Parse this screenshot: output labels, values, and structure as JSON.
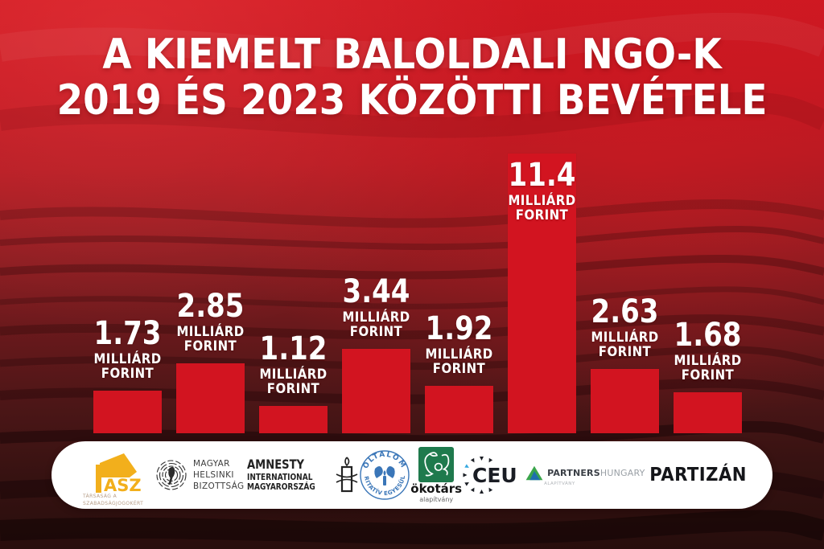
{
  "title": {
    "line1": "A KIEMELT BALOLDALI NGO-K",
    "line2": "2019 ÉS 2023 KÖZÖTTI BEVÉTELE"
  },
  "chart_data": {
    "type": "bar",
    "title": "A kiemelt baloldali NGO-k 2019 és 2023 közötti bevétele",
    "unit": "milliárd forint",
    "categories": [
      "TASZ",
      "Magyar Helsinki Bizottság",
      "Amnesty International Magyarország",
      "Oltalom Karitatív Egyesület",
      "Ökotárs Alapítvány",
      "CEU",
      "Partners Hungary Alapítvány",
      "Partizán"
    ],
    "values": [
      1.73,
      2.85,
      1.12,
      3.44,
      1.92,
      11.4,
      2.63,
      1.68
    ],
    "value_labels": [
      "1.73",
      "2.85",
      "1.12",
      "3.44",
      "1.92",
      "11.4",
      "2.63",
      "1.68"
    ],
    "unit_label_lines": [
      "MILLIÁRD",
      "FORINT"
    ],
    "ylim": [
      0,
      11.4
    ],
    "label_inside_index": 5,
    "bar_color": "#d21420",
    "label_color": "#ffffff",
    "legend": "none",
    "grid": "off"
  },
  "logos": [
    {
      "name": "TASZ",
      "wordmark": "ASZ",
      "caption_line1": "TÁRSASÁG A",
      "caption_line2": "SZABADSÁGJOGOKÉRT",
      "color": "#f2af1c"
    },
    {
      "name": "Magyar Helsinki Bizottság",
      "lines": [
        "MAGYAR",
        "HELSINKI",
        "BIZOTTSÁG"
      ]
    },
    {
      "name": "Amnesty International Magyarország",
      "lines": [
        "AMNESTY",
        "INTERNATIONAL",
        "MAGYARORSZÁG"
      ]
    },
    {
      "name": "Oltalom Karitatív Egyesület",
      "arc_top": "OLTALOM",
      "arc_bottom": "KARITATÍV EGYESÜLET",
      "color": "#3a76b8"
    },
    {
      "name": "Ökotárs Alapítvány",
      "wordmark": "ökotárs",
      "caption": "alapítvány",
      "color": "#1f7a4d"
    },
    {
      "name": "CEU",
      "wordmark": "CEU",
      "accent": "#35a8e0"
    },
    {
      "name": "Partners Hungary",
      "word_bold": "PARTNERS",
      "word_light": "HUNGARY",
      "caption": "ALAPÍTVÁNY"
    },
    {
      "name": "Partizán",
      "wordmark": "PARTIZÁN"
    }
  ],
  "colors": {
    "background_top": "#d01922",
    "background_bottom": "#260d0c",
    "bar": "#d21420",
    "text": "#ffffff",
    "pill": "#ffffff"
  }
}
